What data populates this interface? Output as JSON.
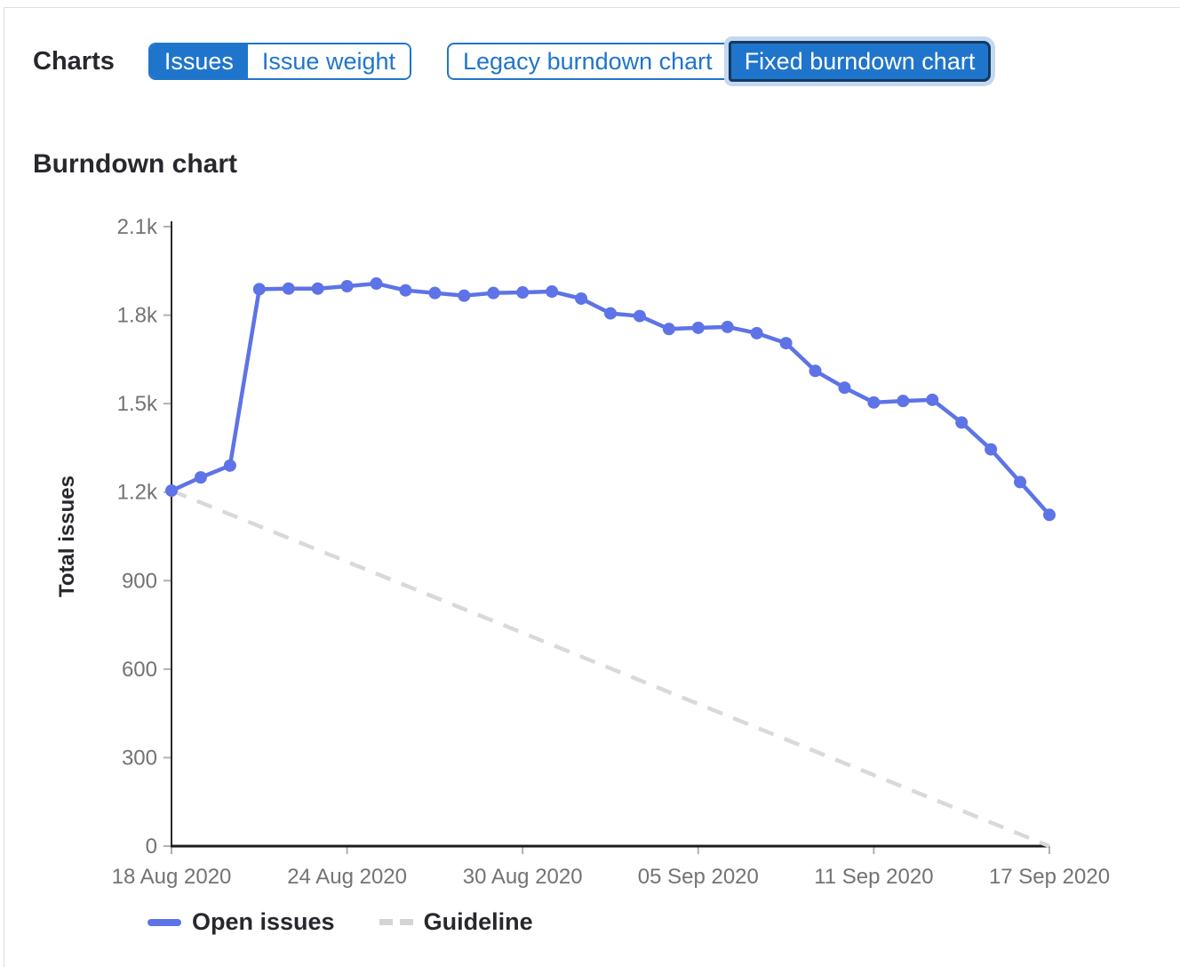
{
  "header": {
    "charts_label": "Charts",
    "issues_toggle": {
      "issues": "Issues",
      "issue_weight": "Issue weight"
    },
    "chart_toggle": {
      "legacy": "Legacy burndown chart",
      "fixed": "Fixed burndown chart"
    }
  },
  "section": {
    "title": "Burndown chart"
  },
  "chart_data": {
    "type": "line",
    "title": "Burndown chart",
    "xlabel": "",
    "ylabel": "Total issues",
    "ylim": [
      0,
      2100
    ],
    "x_range_days": [
      0,
      30
    ],
    "grid": false,
    "legend_position": "bottom",
    "y_ticks": [
      {
        "value": 0,
        "label": "0"
      },
      {
        "value": 300,
        "label": "300"
      },
      {
        "value": 600,
        "label": "600"
      },
      {
        "value": 900,
        "label": "900"
      },
      {
        "value": 1200,
        "label": "1.2k"
      },
      {
        "value": 1500,
        "label": "1.5k"
      },
      {
        "value": 1800,
        "label": "1.8k"
      },
      {
        "value": 2100,
        "label": "2.1k"
      }
    ],
    "x_ticks": [
      {
        "day": 0,
        "label": "18 Aug 2020"
      },
      {
        "day": 6,
        "label": "24 Aug 2020"
      },
      {
        "day": 12,
        "label": "30 Aug 2020"
      },
      {
        "day": 18,
        "label": "05 Sep 2020"
      },
      {
        "day": 24,
        "label": "11 Sep 2020"
      },
      {
        "day": 30,
        "label": "17 Sep 2020"
      }
    ],
    "series": [
      {
        "name": "Open issues",
        "type": "line",
        "style": "solid",
        "marker": "dot",
        "color": "#5d73e7",
        "values": [
          1205,
          1250,
          1290,
          1888,
          1890,
          1890,
          1898,
          1907,
          1884,
          1875,
          1866,
          1875,
          1877,
          1880,
          1856,
          1806,
          1797,
          1753,
          1757,
          1760,
          1739,
          1705,
          1611,
          1554,
          1504,
          1509,
          1513,
          1436,
          1345,
          1234,
          1123
        ]
      },
      {
        "name": "Guideline",
        "type": "line",
        "style": "dashed",
        "marker": "none",
        "color": "#d9d9d9",
        "points": [
          {
            "day": 0,
            "value": 1205
          },
          {
            "day": 30,
            "value": 0
          }
        ]
      }
    ]
  },
  "colors": {
    "accent_blue": "#1f75cb",
    "selected_border_navy": "#123a63",
    "focus_ring_blue": "#c3d8f0",
    "line_blue": "#5d73e7",
    "guideline_gray": "#d9d9d9",
    "axis_dark": "#2b2b2b",
    "tick_mark_gray": "#b0b0b0",
    "tick_text_gray": "#737373",
    "text_dark": "#28272d"
  }
}
